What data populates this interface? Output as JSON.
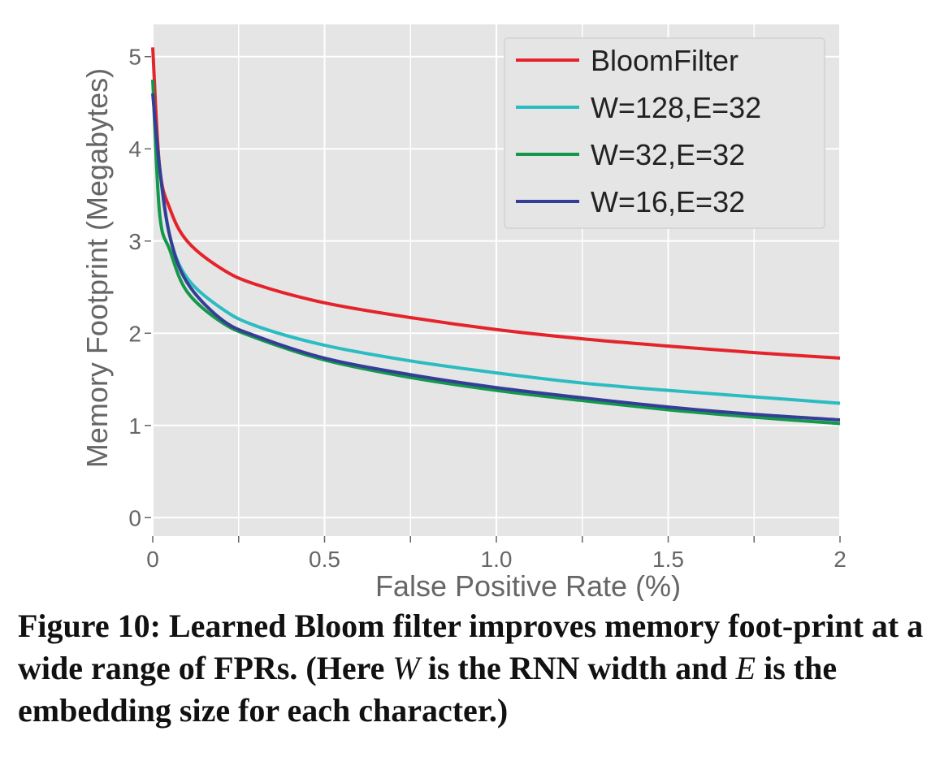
{
  "chart_data": {
    "type": "line",
    "xlabel": "False Positive Rate (%)",
    "ylabel": "Memory Footprint (Megabytes)",
    "xlim": [
      0,
      2
    ],
    "ylim": [
      -0.2,
      5.35
    ],
    "x_ticks": [
      0,
      0.5,
      1.0,
      1.5,
      2
    ],
    "x_tick_labels": [
      "0",
      "0.5",
      "1.0",
      "1.5",
      "2"
    ],
    "y_ticks": [
      0,
      1,
      2,
      3,
      4,
      5
    ],
    "y_tick_labels": [
      "0",
      "1",
      "2",
      "3",
      "4",
      "5"
    ],
    "grid": true,
    "legend_position": "top-right",
    "series": [
      {
        "name": "BloomFilter",
        "color": "#e4232b",
        "x": [
          0,
          0.02,
          0.05,
          0.1,
          0.2,
          0.3,
          0.5,
          0.75,
          1.0,
          1.25,
          1.5,
          1.75,
          2.0
        ],
        "y": [
          5.1,
          3.8,
          3.35,
          3.0,
          2.7,
          2.53,
          2.33,
          2.17,
          2.04,
          1.94,
          1.86,
          1.79,
          1.73
        ]
      },
      {
        "name": "W=128,E=32",
        "color": "#2bbcc1",
        "x": [
          0,
          0.02,
          0.05,
          0.1,
          0.2,
          0.3,
          0.5,
          0.75,
          1.0,
          1.25,
          1.5,
          1.75,
          2.0
        ],
        "y": [
          4.75,
          3.8,
          3.05,
          2.6,
          2.27,
          2.08,
          1.87,
          1.7,
          1.57,
          1.46,
          1.38,
          1.31,
          1.24
        ]
      },
      {
        "name": "W=32,E=32",
        "color": "#14984b",
        "x": [
          0,
          0.02,
          0.05,
          0.1,
          0.2,
          0.3,
          0.5,
          0.75,
          1.0,
          1.25,
          1.5,
          1.75,
          2.0
        ],
        "y": [
          4.75,
          3.3,
          2.9,
          2.45,
          2.12,
          1.95,
          1.71,
          1.52,
          1.38,
          1.27,
          1.17,
          1.09,
          1.02
        ]
      },
      {
        "name": "W=16,E=32",
        "color": "#343e96",
        "x": [
          0,
          0.02,
          0.05,
          0.1,
          0.2,
          0.3,
          0.5,
          0.75,
          1.0,
          1.25,
          1.5,
          1.75,
          2.0
        ],
        "y": [
          4.6,
          3.8,
          3.05,
          2.55,
          2.15,
          1.97,
          1.73,
          1.55,
          1.41,
          1.3,
          1.2,
          1.12,
          1.06
        ]
      }
    ]
  },
  "caption": {
    "part1": "Figure 10: Learned Bloom filter improves memory foot-print at a wide range of FPRs. (Here ",
    "var_w": "W",
    "part2": " is the RNN width and ",
    "var_e": "E",
    "part3": " is the embedding size for each character.)"
  }
}
